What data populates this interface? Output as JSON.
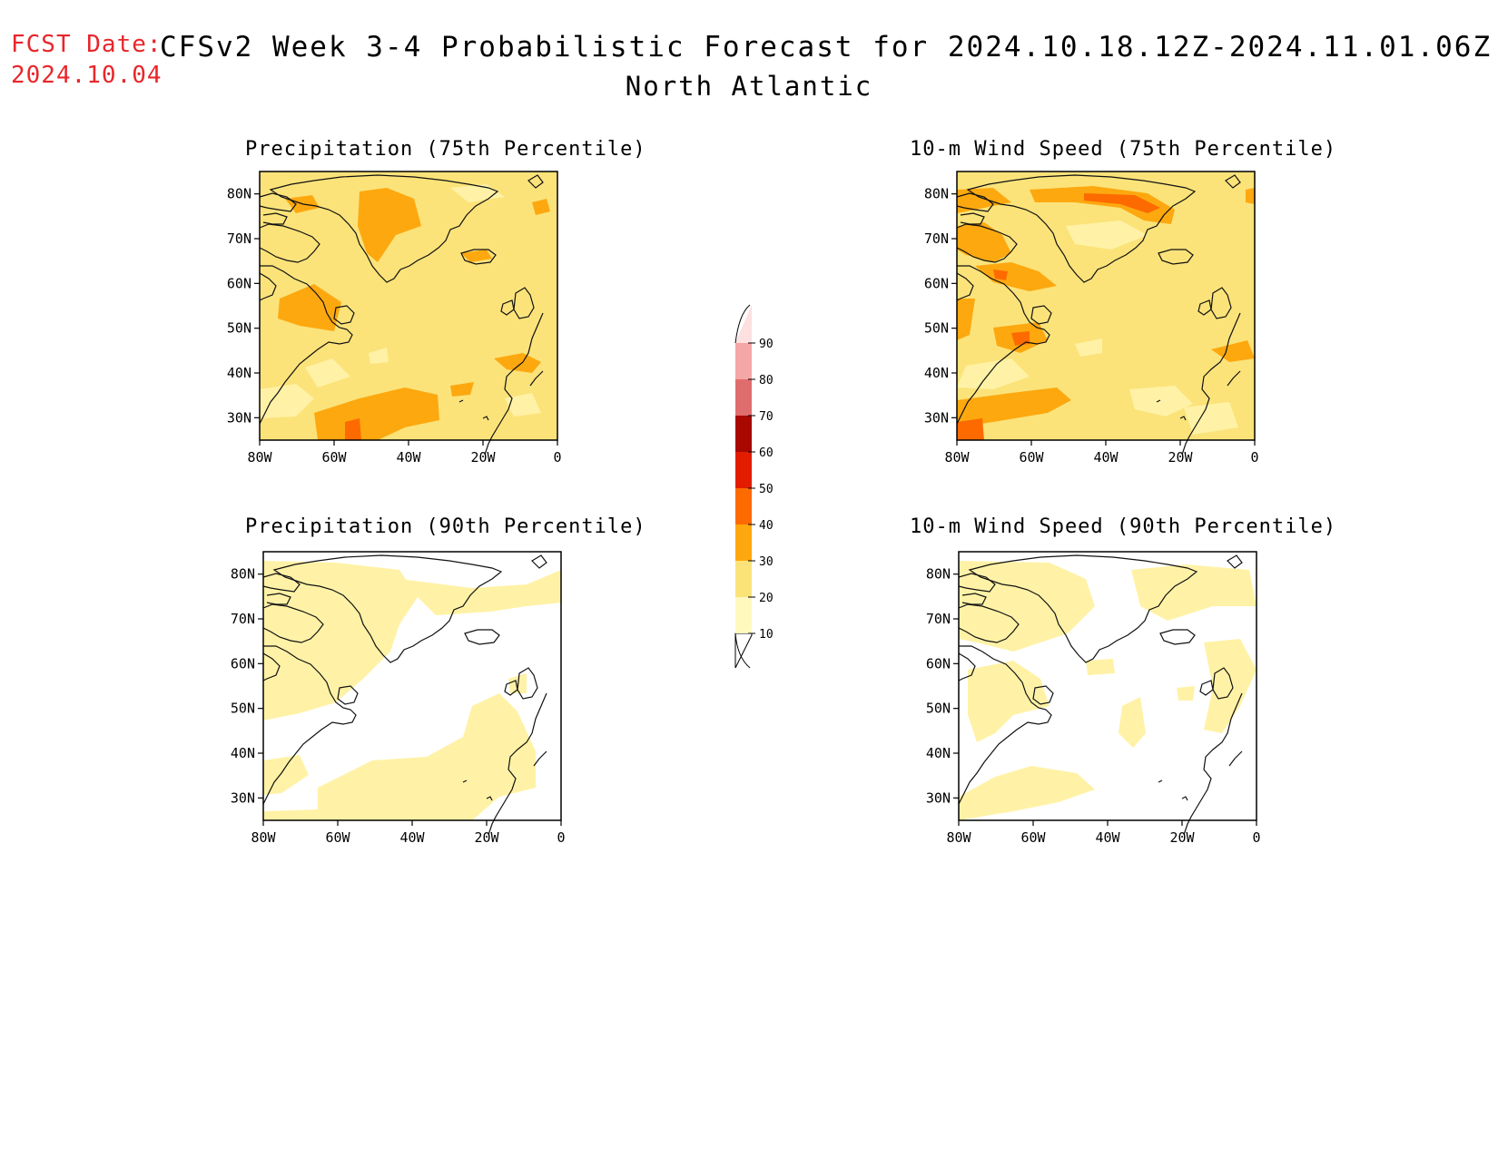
{
  "header": {
    "fcst_label": "FCST Date:",
    "fcst_date": "2024.10.04",
    "title": "CFSv2 Week 3-4 Probabilistic Forecast for 2024.10.18.12Z-2024.11.01.06Z",
    "region": "North Atlantic"
  },
  "panels": [
    {
      "title": "Precipitation (75th Percentile)",
      "base_level": 20
    },
    {
      "title": "10-m Wind Speed (75th Percentile)",
      "base_level": 20
    },
    {
      "title": "Precipitation (90th Percentile)",
      "base_level": 0
    },
    {
      "title": "10-m Wind Speed (90th Percentile)",
      "base_level": 0
    }
  ],
  "axes": {
    "lon_ticks": [
      "80W",
      "60W",
      "40W",
      "20W",
      "0"
    ],
    "lat_ticks": [
      "80N",
      "70N",
      "60N",
      "50N",
      "40N",
      "30N"
    ],
    "lon_range": [
      -80,
      0
    ],
    "lat_range": [
      25,
      85
    ]
  },
  "colorbar": {
    "labels": [
      "10",
      "20",
      "30",
      "40",
      "50",
      "60",
      "70",
      "80",
      "90"
    ],
    "colors": [
      "#fff9c0",
      "#fbe37a",
      "#fda80f",
      "#fd6a00",
      "#e31c00",
      "#a80800",
      "#e06d6d",
      "#f5a6a6",
      "#fde0e0"
    ]
  }
}
